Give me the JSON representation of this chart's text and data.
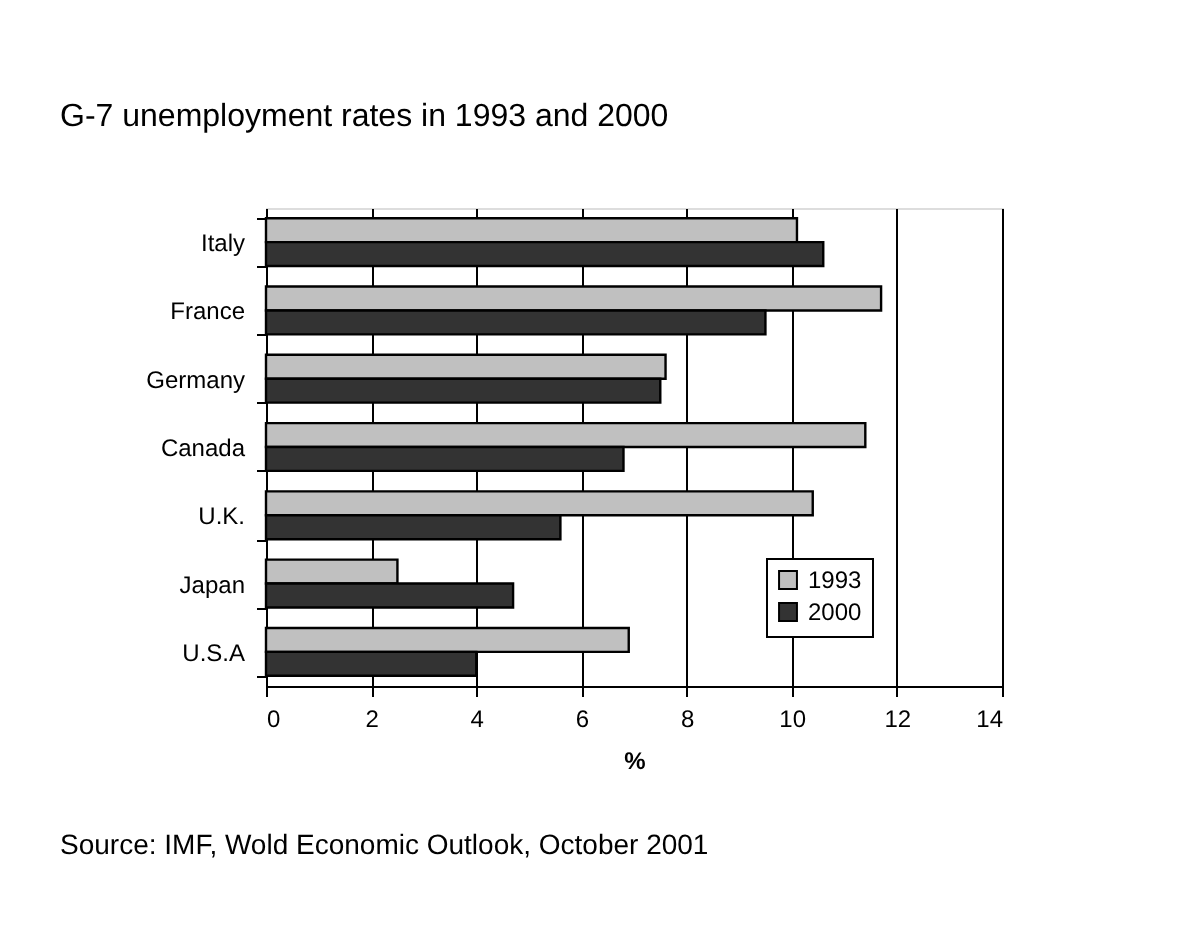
{
  "chart_data": {
    "type": "bar",
    "orientation": "horizontal",
    "title": "G-7 unemployment rates in 1993 and 2000",
    "xlabel": "%",
    "categories": [
      "Italy",
      "France",
      "Germany",
      "Canada",
      "U.K.",
      "Japan",
      "U.S.A"
    ],
    "series": [
      {
        "name": "1993",
        "color": "#c0c0c0",
        "values": [
          10.1,
          11.7,
          7.6,
          11.4,
          10.4,
          2.5,
          6.9
        ]
      },
      {
        "name": "2000",
        "color": "#333333",
        "values": [
          10.6,
          9.5,
          7.5,
          6.8,
          5.6,
          4.7,
          4.0
        ]
      }
    ],
    "xlim": [
      0,
      14
    ],
    "xticks": [
      0,
      2,
      4,
      6,
      8,
      10,
      12,
      14
    ],
    "grid": "x",
    "legend": "bottom right",
    "annotations": [
      "Source: IMF, Wold Economic Outlook, October 2001"
    ]
  }
}
